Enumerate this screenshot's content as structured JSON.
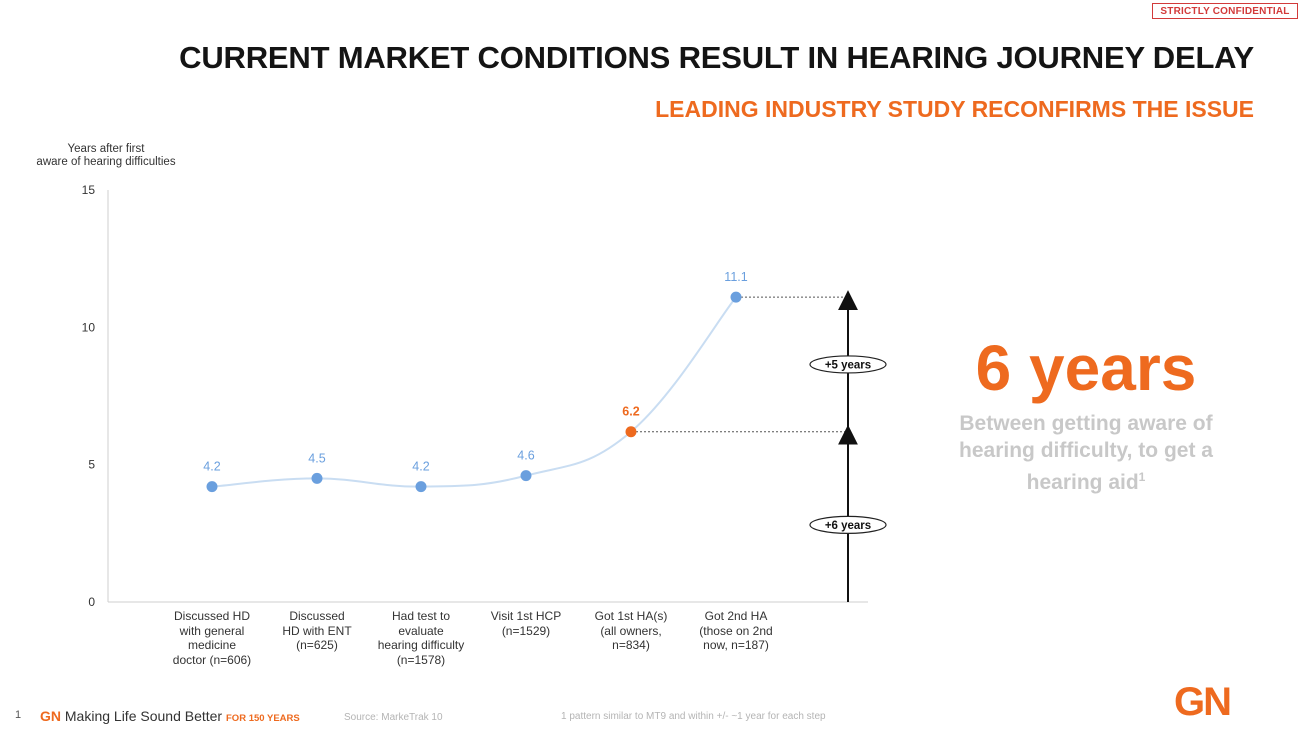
{
  "header": {
    "confidential_label": "STRICTLY CONFIDENTIAL",
    "title": "CURRENT MARKET CONDITIONS RESULT IN HEARING JOURNEY DELAY",
    "subtitle": "LEADING INDUSTRY STUDY RECONFIRMS THE ISSUE"
  },
  "chart_data": {
    "type": "line",
    "ylabel": "Years after first\naware of hearing difficulties",
    "ylim": [
      0,
      15
    ],
    "yticks": [
      0,
      5,
      10,
      15
    ],
    "grid": false,
    "categories": [
      "Discussed HD\nwith general\nmedicine\ndoctor (n=606)",
      "Discussed\nHD with ENT\n(n=625)",
      "Had test to\nevaluate\nhearing difficulty\n(n=1578)",
      "Visit 1st HCP\n(n=1529)",
      "Got 1st HA(s)\n(all owners,\nn=834)",
      "Got 2nd HA\n(those on 2nd\nnow, n=187)"
    ],
    "series": [
      {
        "values": [
          4.2,
          4.5,
          4.2,
          4.6,
          6.2,
          11.1
        ]
      }
    ],
    "data_labels": [
      "4.2",
      "4.5",
      "4.2",
      "4.6",
      "6.2",
      "11.1"
    ],
    "highlight_index": 4,
    "annotations": [
      {
        "text": "+6 years",
        "from": 0,
        "to": 6.2
      },
      {
        "text": "+5 years",
        "from": 6.2,
        "to": 11.1
      }
    ],
    "colors": {
      "line": "#c9ddf2",
      "point": "#6a9fde",
      "highlight": "#ee6a1f",
      "label": "#6a9fde",
      "axis": "#cfcfcf"
    }
  },
  "callout": {
    "headline": "6 years",
    "text": "Between getting aware of hearing difficulty, to get a hearing aid",
    "footnote_marker": "1"
  },
  "footer": {
    "page_number": "1",
    "brand_gn": "GN",
    "brand_tagline": "Making Life Sound Better",
    "brand_years": "FOR 150 YEARS",
    "source": "Source: MarkeTrak 10",
    "footnote": "1 pattern similar to MT9 and within +/- ~1 year for each step",
    "logo": "GN"
  }
}
